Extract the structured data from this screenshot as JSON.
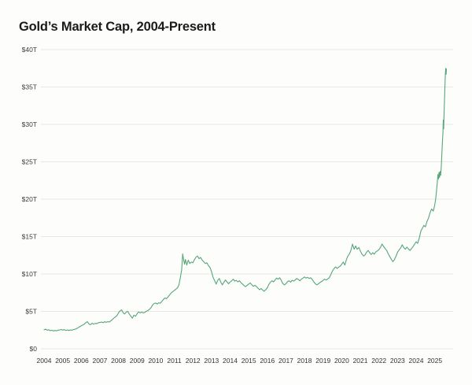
{
  "page": {
    "background": "#fdfdfb"
  },
  "header": {
    "title": "Gold’s Market Cap, 2004-Present"
  },
  "chart_data": {
    "type": "line",
    "title": "Gold’s Market Cap, 2004-Present",
    "xlabel": "",
    "ylabel": "",
    "unit": "trillion USD",
    "grid": "horizontal",
    "legend": "none",
    "line_color": "#57a67b",
    "xlim": [
      2004,
      2026.1
    ],
    "ylim": [
      0,
      40
    ],
    "x_ticks": [
      "2004",
      "2005",
      "2006",
      "2007",
      "2008",
      "2009",
      "2010",
      "2011",
      "2012",
      "2013",
      "2014",
      "2015",
      "2016",
      "2017",
      "2018",
      "2019",
      "2020",
      "2021",
      "2022",
      "2023",
      "2024",
      "2025"
    ],
    "y_ticks": [
      {
        "label": "$40T",
        "value": 40
      },
      {
        "label": "$35T",
        "value": 35
      },
      {
        "label": "$30T",
        "value": 30
      },
      {
        "label": "$25T",
        "value": 25
      },
      {
        "label": "$20T",
        "value": 20
      },
      {
        "label": "$15T",
        "value": 15
      },
      {
        "label": "$10T",
        "value": 10
      },
      {
        "label": "$5T",
        "value": 5
      },
      {
        "label": "$0",
        "value": 0
      }
    ],
    "series": [
      {
        "name": "Gold market cap ($T)",
        "points": [
          [
            2004.0,
            2.55
          ],
          [
            2004.08,
            2.62
          ],
          [
            2004.17,
            2.48
          ],
          [
            2004.25,
            2.55
          ],
          [
            2004.33,
            2.42
          ],
          [
            2004.42,
            2.48
          ],
          [
            2004.5,
            2.38
          ],
          [
            2004.58,
            2.45
          ],
          [
            2004.67,
            2.4
          ],
          [
            2004.75,
            2.48
          ],
          [
            2004.83,
            2.52
          ],
          [
            2004.92,
            2.58
          ],
          [
            2005.0,
            2.5
          ],
          [
            2005.08,
            2.56
          ],
          [
            2005.17,
            2.46
          ],
          [
            2005.25,
            2.52
          ],
          [
            2005.33,
            2.45
          ],
          [
            2005.42,
            2.52
          ],
          [
            2005.5,
            2.48
          ],
          [
            2005.58,
            2.58
          ],
          [
            2005.67,
            2.62
          ],
          [
            2005.75,
            2.7
          ],
          [
            2005.83,
            2.82
          ],
          [
            2005.92,
            2.95
          ],
          [
            2006.0,
            3.08
          ],
          [
            2006.08,
            3.18
          ],
          [
            2006.17,
            3.3
          ],
          [
            2006.25,
            3.52
          ],
          [
            2006.33,
            3.62
          ],
          [
            2006.42,
            3.3
          ],
          [
            2006.5,
            3.22
          ],
          [
            2006.58,
            3.42
          ],
          [
            2006.67,
            3.28
          ],
          [
            2006.75,
            3.4
          ],
          [
            2006.83,
            3.35
          ],
          [
            2006.92,
            3.48
          ],
          [
            2007.0,
            3.52
          ],
          [
            2007.08,
            3.58
          ],
          [
            2007.17,
            3.5
          ],
          [
            2007.25,
            3.62
          ],
          [
            2007.33,
            3.55
          ],
          [
            2007.42,
            3.62
          ],
          [
            2007.5,
            3.58
          ],
          [
            2007.58,
            3.72
          ],
          [
            2007.67,
            3.9
          ],
          [
            2007.75,
            4.1
          ],
          [
            2007.83,
            4.25
          ],
          [
            2007.92,
            4.45
          ],
          [
            2008.0,
            4.8
          ],
          [
            2008.08,
            5.05
          ],
          [
            2008.17,
            5.2
          ],
          [
            2008.25,
            4.82
          ],
          [
            2008.33,
            4.65
          ],
          [
            2008.42,
            4.9
          ],
          [
            2008.5,
            5.0
          ],
          [
            2008.58,
            4.65
          ],
          [
            2008.67,
            4.35
          ],
          [
            2008.75,
            4.1
          ],
          [
            2008.83,
            4.5
          ],
          [
            2008.92,
            4.35
          ],
          [
            2009.0,
            4.7
          ],
          [
            2009.08,
            4.92
          ],
          [
            2009.17,
            4.8
          ],
          [
            2009.25,
            4.92
          ],
          [
            2009.33,
            4.78
          ],
          [
            2009.42,
            4.88
          ],
          [
            2009.5,
            5.0
          ],
          [
            2009.58,
            5.12
          ],
          [
            2009.67,
            5.28
          ],
          [
            2009.75,
            5.5
          ],
          [
            2009.83,
            5.85
          ],
          [
            2009.92,
            6.05
          ],
          [
            2010.0,
            6.12
          ],
          [
            2010.08,
            6.0
          ],
          [
            2010.17,
            6.15
          ],
          [
            2010.25,
            6.1
          ],
          [
            2010.33,
            6.35
          ],
          [
            2010.42,
            6.6
          ],
          [
            2010.5,
            6.8
          ],
          [
            2010.58,
            6.7
          ],
          [
            2010.67,
            6.95
          ],
          [
            2010.75,
            7.2
          ],
          [
            2010.83,
            7.45
          ],
          [
            2010.92,
            7.65
          ],
          [
            2011.0,
            7.8
          ],
          [
            2011.08,
            7.95
          ],
          [
            2011.17,
            8.15
          ],
          [
            2011.25,
            8.55
          ],
          [
            2011.33,
            9.6
          ],
          [
            2011.4,
            10.6
          ],
          [
            2011.45,
            12.7
          ],
          [
            2011.5,
            11.9
          ],
          [
            2011.55,
            11.3
          ],
          [
            2011.6,
            11.95
          ],
          [
            2011.67,
            11.2
          ],
          [
            2011.75,
            11.85
          ],
          [
            2011.83,
            11.4
          ],
          [
            2011.92,
            11.6
          ],
          [
            2012.0,
            11.5
          ],
          [
            2012.08,
            11.9
          ],
          [
            2012.17,
            12.25
          ],
          [
            2012.25,
            12.4
          ],
          [
            2012.33,
            12.05
          ],
          [
            2012.42,
            12.2
          ],
          [
            2012.5,
            11.85
          ],
          [
            2012.58,
            11.65
          ],
          [
            2012.67,
            11.4
          ],
          [
            2012.75,
            11.5
          ],
          [
            2012.83,
            11.15
          ],
          [
            2012.92,
            10.85
          ],
          [
            2013.0,
            10.3
          ],
          [
            2013.08,
            9.6
          ],
          [
            2013.17,
            9.1
          ],
          [
            2013.25,
            8.65
          ],
          [
            2013.33,
            9.15
          ],
          [
            2013.42,
            9.4
          ],
          [
            2013.5,
            8.9
          ],
          [
            2013.58,
            8.55
          ],
          [
            2013.67,
            8.9
          ],
          [
            2013.75,
            9.2
          ],
          [
            2013.83,
            8.95
          ],
          [
            2013.92,
            8.7
          ],
          [
            2014.0,
            8.9
          ],
          [
            2014.08,
            9.1
          ],
          [
            2014.17,
            9.3
          ],
          [
            2014.25,
            9.05
          ],
          [
            2014.33,
            9.15
          ],
          [
            2014.42,
            8.95
          ],
          [
            2014.5,
            9.1
          ],
          [
            2014.58,
            8.85
          ],
          [
            2014.67,
            8.65
          ],
          [
            2014.75,
            8.45
          ],
          [
            2014.83,
            8.3
          ],
          [
            2014.92,
            8.5
          ],
          [
            2015.0,
            8.65
          ],
          [
            2015.08,
            8.8
          ],
          [
            2015.17,
            8.55
          ],
          [
            2015.25,
            8.35
          ],
          [
            2015.33,
            8.5
          ],
          [
            2015.42,
            8.3
          ],
          [
            2015.5,
            8.1
          ],
          [
            2015.58,
            7.9
          ],
          [
            2015.67,
            8.05
          ],
          [
            2015.75,
            7.85
          ],
          [
            2015.83,
            7.7
          ],
          [
            2015.92,
            7.9
          ],
          [
            2016.0,
            8.15
          ],
          [
            2016.08,
            8.6
          ],
          [
            2016.17,
            8.9
          ],
          [
            2016.25,
            9.1
          ],
          [
            2016.33,
            8.95
          ],
          [
            2016.42,
            9.2
          ],
          [
            2016.5,
            9.45
          ],
          [
            2016.58,
            9.3
          ],
          [
            2016.67,
            9.5
          ],
          [
            2016.75,
            9.15
          ],
          [
            2016.83,
            8.75
          ],
          [
            2016.92,
            8.55
          ],
          [
            2017.0,
            8.7
          ],
          [
            2017.08,
            8.95
          ],
          [
            2017.17,
            9.1
          ],
          [
            2017.25,
            8.9
          ],
          [
            2017.33,
            9.15
          ],
          [
            2017.42,
            9.05
          ],
          [
            2017.5,
            9.2
          ],
          [
            2017.58,
            9.4
          ],
          [
            2017.67,
            9.25
          ],
          [
            2017.75,
            9.1
          ],
          [
            2017.83,
            9.3
          ],
          [
            2017.92,
            9.45
          ],
          [
            2018.0,
            9.6
          ],
          [
            2018.08,
            9.45
          ],
          [
            2018.17,
            9.55
          ],
          [
            2018.25,
            9.4
          ],
          [
            2018.33,
            9.5
          ],
          [
            2018.42,
            9.25
          ],
          [
            2018.5,
            8.95
          ],
          [
            2018.58,
            8.7
          ],
          [
            2018.67,
            8.55
          ],
          [
            2018.75,
            8.7
          ],
          [
            2018.83,
            8.85
          ],
          [
            2018.92,
            9.0
          ],
          [
            2019.0,
            9.15
          ],
          [
            2019.08,
            9.3
          ],
          [
            2019.17,
            9.2
          ],
          [
            2019.25,
            9.35
          ],
          [
            2019.33,
            9.5
          ],
          [
            2019.42,
            9.95
          ],
          [
            2019.5,
            10.4
          ],
          [
            2019.58,
            10.7
          ],
          [
            2019.67,
            10.95
          ],
          [
            2019.75,
            10.75
          ],
          [
            2019.83,
            10.9
          ],
          [
            2019.92,
            11.05
          ],
          [
            2020.0,
            11.3
          ],
          [
            2020.08,
            11.6
          ],
          [
            2020.17,
            11.2
          ],
          [
            2020.25,
            11.9
          ],
          [
            2020.33,
            12.4
          ],
          [
            2020.42,
            12.7
          ],
          [
            2020.5,
            13.2
          ],
          [
            2020.58,
            14.0
          ],
          [
            2020.63,
            13.6
          ],
          [
            2020.67,
            13.3
          ],
          [
            2020.75,
            13.75
          ],
          [
            2020.83,
            13.3
          ],
          [
            2020.92,
            13.55
          ],
          [
            2021.0,
            13.1
          ],
          [
            2021.08,
            12.7
          ],
          [
            2021.17,
            12.4
          ],
          [
            2021.25,
            12.55
          ],
          [
            2021.33,
            12.9
          ],
          [
            2021.42,
            13.15
          ],
          [
            2021.5,
            12.85
          ],
          [
            2021.58,
            12.6
          ],
          [
            2021.67,
            12.85
          ],
          [
            2021.75,
            12.65
          ],
          [
            2021.83,
            12.95
          ],
          [
            2021.92,
            13.1
          ],
          [
            2022.0,
            13.25
          ],
          [
            2022.08,
            13.55
          ],
          [
            2022.17,
            14.0
          ],
          [
            2022.25,
            13.7
          ],
          [
            2022.33,
            13.4
          ],
          [
            2022.42,
            13.15
          ],
          [
            2022.5,
            12.7
          ],
          [
            2022.58,
            12.35
          ],
          [
            2022.67,
            11.95
          ],
          [
            2022.75,
            11.65
          ],
          [
            2022.83,
            11.9
          ],
          [
            2022.92,
            12.4
          ],
          [
            2023.0,
            12.9
          ],
          [
            2023.08,
            13.2
          ],
          [
            2023.17,
            13.5
          ],
          [
            2023.25,
            13.9
          ],
          [
            2023.33,
            13.55
          ],
          [
            2023.42,
            13.3
          ],
          [
            2023.5,
            13.6
          ],
          [
            2023.58,
            13.35
          ],
          [
            2023.67,
            13.15
          ],
          [
            2023.75,
            13.4
          ],
          [
            2023.83,
            13.65
          ],
          [
            2023.92,
            14.0
          ],
          [
            2024.0,
            14.3
          ],
          [
            2024.08,
            14.1
          ],
          [
            2024.17,
            14.8
          ],
          [
            2024.25,
            15.7
          ],
          [
            2024.33,
            16.1
          ],
          [
            2024.42,
            16.5
          ],
          [
            2024.5,
            16.3
          ],
          [
            2024.58,
            17.0
          ],
          [
            2024.67,
            17.5
          ],
          [
            2024.75,
            18.2
          ],
          [
            2024.83,
            18.7
          ],
          [
            2024.92,
            18.4
          ],
          [
            2025.0,
            19.2
          ],
          [
            2025.05,
            20.0
          ],
          [
            2025.1,
            21.2
          ],
          [
            2025.14,
            22.4
          ],
          [
            2025.17,
            23.3
          ],
          [
            2025.2,
            22.7
          ],
          [
            2025.23,
            23.6
          ],
          [
            2025.26,
            22.9
          ],
          [
            2025.29,
            23.7
          ],
          [
            2025.32,
            23.2
          ],
          [
            2025.35,
            24.3
          ],
          [
            2025.38,
            25.8
          ],
          [
            2025.41,
            27.4
          ],
          [
            2025.44,
            29.0
          ],
          [
            2025.46,
            30.6
          ],
          [
            2025.48,
            29.4
          ],
          [
            2025.5,
            31.5
          ],
          [
            2025.53,
            33.8
          ],
          [
            2025.55,
            35.4
          ],
          [
            2025.57,
            36.6
          ],
          [
            2025.59,
            37.5
          ],
          [
            2025.61,
            36.7
          ],
          [
            2025.63,
            37.4
          ]
        ]
      }
    ]
  }
}
